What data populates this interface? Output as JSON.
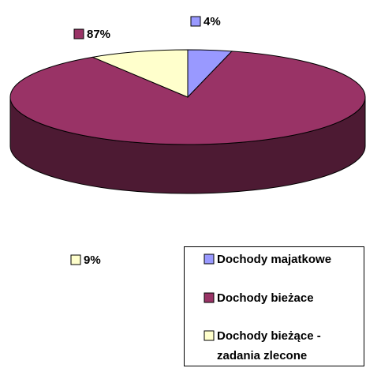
{
  "chart_data": {
    "type": "pie",
    "categories": [
      "Dochody majatkowe",
      "Dochody bieżace",
      "Dochody bieżące - zadania zlecone"
    ],
    "values": [
      4,
      87,
      9
    ],
    "value_labels": [
      "4%",
      "87%",
      "9%"
    ],
    "colors": [
      "#9999ff",
      "#993366",
      "#ffffcc"
    ],
    "legend": "bottom-right"
  }
}
